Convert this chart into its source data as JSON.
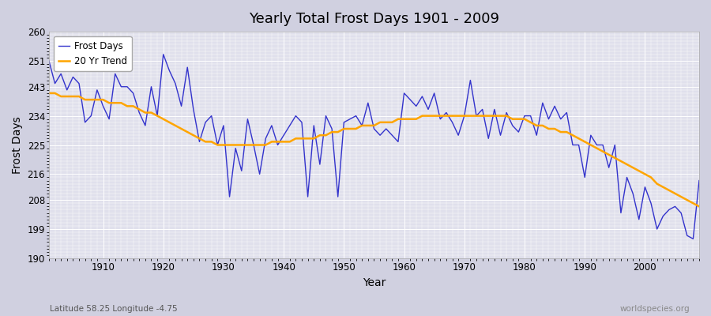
{
  "title": "Yearly Total Frost Days 1901 - 2009",
  "xlabel": "Year",
  "ylabel": "Frost Days",
  "subtitle": "Latitude 58.25 Longitude -4.75",
  "watermark": "worldspecies.org",
  "ylim": [
    190,
    260
  ],
  "yticks": [
    190,
    199,
    208,
    216,
    225,
    234,
    243,
    251,
    260
  ],
  "xlim": [
    1901,
    2009
  ],
  "xticks": [
    1910,
    1920,
    1930,
    1940,
    1950,
    1960,
    1970,
    1980,
    1990,
    2000
  ],
  "line_color": "#3333cc",
  "trend_color": "#FFA500",
  "bg_color": "#e0e0ec",
  "fig_bg_color": "#d0d0e0",
  "years": [
    1901,
    1902,
    1903,
    1904,
    1905,
    1906,
    1907,
    1908,
    1909,
    1910,
    1911,
    1912,
    1913,
    1914,
    1915,
    1916,
    1917,
    1918,
    1919,
    1920,
    1921,
    1922,
    1923,
    1924,
    1925,
    1926,
    1927,
    1928,
    1929,
    1930,
    1931,
    1932,
    1933,
    1934,
    1935,
    1936,
    1937,
    1938,
    1939,
    1940,
    1941,
    1942,
    1943,
    1944,
    1945,
    1946,
    1947,
    1948,
    1949,
    1950,
    1951,
    1952,
    1953,
    1954,
    1955,
    1956,
    1957,
    1958,
    1959,
    1960,
    1961,
    1962,
    1963,
    1964,
    1965,
    1966,
    1967,
    1968,
    1969,
    1970,
    1971,
    1972,
    1973,
    1974,
    1975,
    1976,
    1977,
    1978,
    1979,
    1980,
    1981,
    1982,
    1983,
    1984,
    1985,
    1986,
    1987,
    1988,
    1989,
    1990,
    1991,
    1992,
    1993,
    1994,
    1995,
    1996,
    1997,
    1998,
    1999,
    2000,
    2001,
    2002,
    2003,
    2004,
    2005,
    2006,
    2007,
    2008,
    2009
  ],
  "frost_days": [
    251,
    244,
    247,
    242,
    246,
    244,
    232,
    234,
    242,
    237,
    233,
    247,
    243,
    243,
    241,
    235,
    231,
    243,
    234,
    253,
    248,
    244,
    237,
    249,
    236,
    226,
    232,
    234,
    225,
    231,
    209,
    224,
    217,
    233,
    225,
    216,
    227,
    231,
    225,
    228,
    231,
    234,
    232,
    209,
    231,
    219,
    234,
    230,
    209,
    232,
    233,
    234,
    231,
    238,
    230,
    228,
    230,
    228,
    226,
    241,
    239,
    237,
    240,
    236,
    241,
    233,
    235,
    232,
    228,
    234,
    245,
    234,
    236,
    227,
    236,
    228,
    235,
    231,
    229,
    234,
    234,
    228,
    238,
    233,
    237,
    233,
    235,
    225,
    225,
    215,
    228,
    225,
    225,
    218,
    225,
    204,
    215,
    210,
    202,
    212,
    207,
    199,
    203,
    205,
    206,
    204,
    197,
    196,
    214
  ],
  "trend": [
    241,
    241,
    240,
    240,
    240,
    240,
    239,
    239,
    239,
    239,
    238,
    238,
    238,
    237,
    237,
    236,
    235,
    235,
    234,
    233,
    232,
    231,
    230,
    229,
    228,
    227,
    226,
    226,
    225,
    225,
    225,
    225,
    225,
    225,
    225,
    225,
    225,
    226,
    226,
    226,
    226,
    227,
    227,
    227,
    227,
    228,
    228,
    229,
    229,
    230,
    230,
    230,
    231,
    231,
    231,
    232,
    232,
    232,
    233,
    233,
    233,
    233,
    234,
    234,
    234,
    234,
    234,
    234,
    234,
    234,
    234,
    234,
    234,
    234,
    234,
    234,
    234,
    233,
    233,
    233,
    232,
    231,
    231,
    230,
    230,
    229,
    229,
    228,
    227,
    226,
    225,
    224,
    223,
    222,
    221,
    220,
    219,
    218,
    217,
    216,
    215,
    213,
    212,
    211,
    210,
    209,
    208,
    207,
    206
  ]
}
